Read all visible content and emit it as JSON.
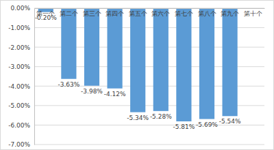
{
  "chart_data": {
    "type": "bar",
    "categories": [
      "第一个",
      "第二个",
      "第三个",
      "第四个",
      "第五个",
      "第六个",
      "第七个",
      "第八个",
      "第九个",
      "第十个"
    ],
    "values": [
      -0.2,
      -3.63,
      -3.98,
      -4.12,
      -5.34,
      -5.28,
      -5.81,
      -5.69,
      -5.54,
      null
    ],
    "value_labels": [
      "-0.20%",
      "-3.63%",
      "-3.98%",
      "-4.12%",
      "-5.34%",
      "-5.28%",
      "-5.81%",
      "-5.69%",
      "-5.54%",
      null
    ],
    "color": "#5b9bd5",
    "ylim": [
      -7,
      0
    ],
    "yticks": [
      {
        "value": 0,
        "label": "0.00%"
      },
      {
        "value": -1,
        "label": "-1.00%"
      },
      {
        "value": -2,
        "label": "-2.00%"
      },
      {
        "value": -3,
        "label": "-3.00%"
      },
      {
        "value": -4,
        "label": "-4.00%"
      },
      {
        "value": -5,
        "label": "-5.00%"
      },
      {
        "value": -6,
        "label": "-6.00%"
      },
      {
        "value": -7,
        "label": "-7.00%"
      }
    ],
    "grid": true,
    "data_labels": true
  }
}
